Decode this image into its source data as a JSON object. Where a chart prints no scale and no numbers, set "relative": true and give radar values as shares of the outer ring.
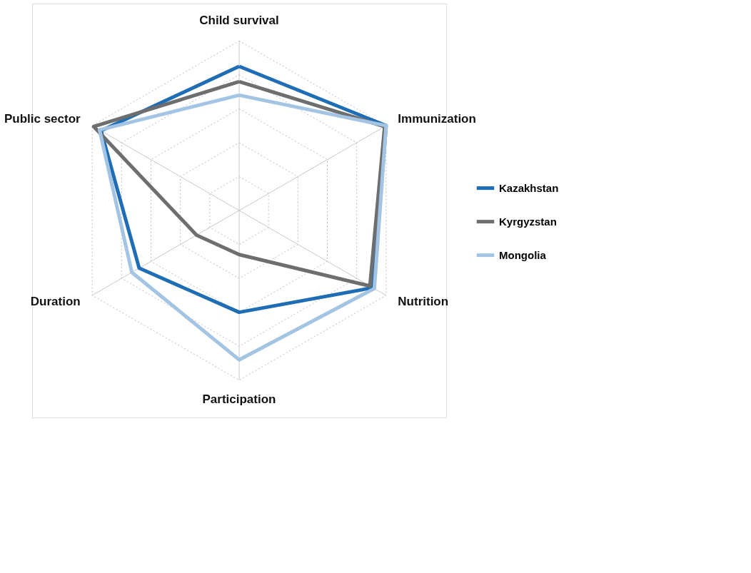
{
  "chart_data": {
    "type": "radar",
    "relative": true,
    "legend": "right",
    "categories": [
      "Child survival",
      "Immunization",
      "Nutrition",
      "Participation",
      "Duration",
      "Public sector"
    ],
    "series": [
      {
        "name": "Kazakhstan",
        "color": "#1f6eb5",
        "values": [
          0.85,
          1.0,
          0.91,
          0.6,
          0.68,
          0.94
        ]
      },
      {
        "name": "Kyrgyzstan",
        "color": "#6d6e70",
        "values": [
          0.76,
          0.99,
          0.89,
          0.26,
          0.29,
          0.99
        ]
      },
      {
        "name": "Mongolia",
        "color": "#a3c4e3",
        "values": [
          0.68,
          1.0,
          0.92,
          0.88,
          0.73,
          0.95
        ]
      }
    ]
  }
}
